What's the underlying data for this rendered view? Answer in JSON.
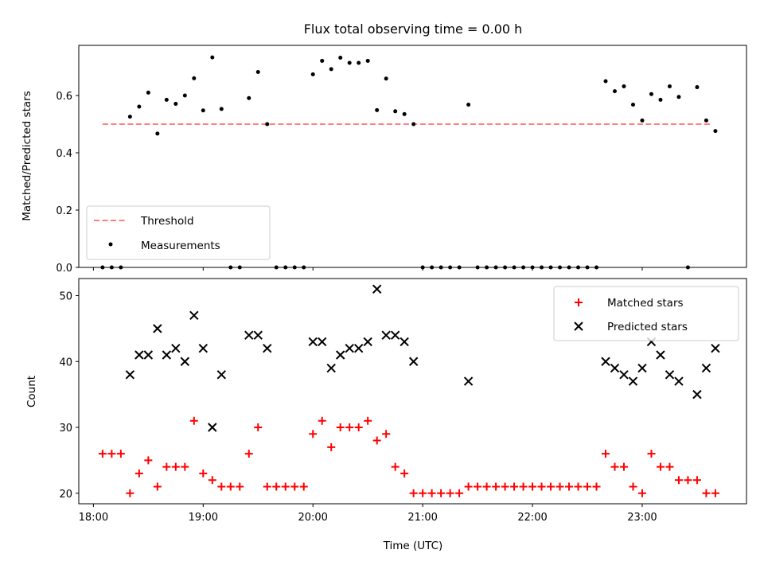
{
  "chart_data": [
    {
      "type": "scatter",
      "title": "Flux total observing time = 0.00 h",
      "xlabel": "",
      "ylabel": "Matched/Predicted stars",
      "xlim": [
        "17:52",
        "23:57"
      ],
      "ylim": [
        0,
        0.775
      ],
      "yticks": [
        0.0,
        0.2,
        0.4,
        0.6
      ],
      "ytick_labels": [
        "0.0",
        "0.2",
        "0.4",
        "0.6"
      ],
      "legend_location": "lower-left",
      "threshold": {
        "name": "Threshold",
        "value": 0.5,
        "x_start": "18:05",
        "x_end": "23:38",
        "color": "#ff7f7f"
      },
      "series": [
        {
          "name": "Measurements",
          "color": "#000000",
          "points": [
            [
              "18:05",
              0
            ],
            [
              "18:10",
              0
            ],
            [
              "18:15",
              0
            ],
            [
              "18:20",
              0.526
            ],
            [
              "18:25",
              0.561
            ],
            [
              "18:30",
              0.61
            ],
            [
              "18:35",
              0.467
            ],
            [
              "18:40",
              0.585
            ],
            [
              "18:45",
              0.571
            ],
            [
              "18:50",
              0.6
            ],
            [
              "18:55",
              0.66
            ],
            [
              "19:00",
              0.548
            ],
            [
              "19:05",
              0.733
            ],
            [
              "19:10",
              0.553
            ],
            [
              "19:15",
              0
            ],
            [
              "19:20",
              0
            ],
            [
              "19:25",
              0.591
            ],
            [
              "19:30",
              0.682
            ],
            [
              "19:35",
              0.5
            ],
            [
              "19:40",
              0
            ],
            [
              "19:45",
              0
            ],
            [
              "19:50",
              0
            ],
            [
              "19:55",
              0
            ],
            [
              "20:00",
              0.674
            ],
            [
              "20:05",
              0.721
            ],
            [
              "20:10",
              0.692
            ],
            [
              "20:15",
              0.732
            ],
            [
              "20:20",
              0.714
            ],
            [
              "20:25",
              0.714
            ],
            [
              "20:30",
              0.721
            ],
            [
              "20:35",
              0.549
            ],
            [
              "20:40",
              0.659
            ],
            [
              "20:45",
              0.545
            ],
            [
              "20:50",
              0.535
            ],
            [
              "20:55",
              0.5
            ],
            [
              "21:00",
              0
            ],
            [
              "21:05",
              0
            ],
            [
              "21:10",
              0
            ],
            [
              "21:15",
              0
            ],
            [
              "21:20",
              0
            ],
            [
              "21:25",
              0.568
            ],
            [
              "21:30",
              0
            ],
            [
              "21:35",
              0
            ],
            [
              "21:40",
              0
            ],
            [
              "21:45",
              0
            ],
            [
              "21:50",
              0
            ],
            [
              "21:55",
              0
            ],
            [
              "22:00",
              0
            ],
            [
              "22:05",
              0
            ],
            [
              "22:10",
              0
            ],
            [
              "22:15",
              0
            ],
            [
              "22:20",
              0
            ],
            [
              "22:25",
              0
            ],
            [
              "22:30",
              0
            ],
            [
              "22:35",
              0
            ],
            [
              "22:40",
              0.65
            ],
            [
              "22:45",
              0.615
            ],
            [
              "22:50",
              0.632
            ],
            [
              "22:55",
              0.568
            ],
            [
              "23:00",
              0.513
            ],
            [
              "23:05",
              0.605
            ],
            [
              "23:10",
              0.585
            ],
            [
              "23:15",
              0.632
            ],
            [
              "23:20",
              0.595
            ],
            [
              "23:25",
              0
            ],
            [
              "23:30",
              0.629
            ],
            [
              "23:35",
              0.513
            ],
            [
              "23:40",
              0.476
            ]
          ]
        }
      ]
    },
    {
      "type": "scatter",
      "title": "",
      "xlabel": "Time (UTC)",
      "ylabel": "Count",
      "xlim": [
        "17:52",
        "23:57"
      ],
      "ylim": [
        18.4,
        52.6
      ],
      "xticks": [
        "18:00",
        "19:00",
        "20:00",
        "21:00",
        "22:00",
        "23:00"
      ],
      "yticks": [
        20,
        30,
        40,
        50
      ],
      "ytick_labels": [
        "20",
        "30",
        "40",
        "50"
      ],
      "legend_location": "upper-right",
      "series": [
        {
          "name": "Matched stars",
          "color": "#ff0000",
          "marker": "+",
          "points": [
            [
              "18:05",
              26
            ],
            [
              "18:10",
              26
            ],
            [
              "18:15",
              26
            ],
            [
              "18:20",
              20
            ],
            [
              "18:25",
              23
            ],
            [
              "18:30",
              25
            ],
            [
              "18:35",
              21
            ],
            [
              "18:40",
              24
            ],
            [
              "18:45",
              24
            ],
            [
              "18:50",
              24
            ],
            [
              "18:55",
              31
            ],
            [
              "19:00",
              23
            ],
            [
              "19:05",
              22
            ],
            [
              "19:10",
              21
            ],
            [
              "19:15",
              21
            ],
            [
              "19:20",
              21
            ],
            [
              "19:25",
              26
            ],
            [
              "19:30",
              30
            ],
            [
              "19:35",
              21
            ],
            [
              "19:40",
              21
            ],
            [
              "19:45",
              21
            ],
            [
              "19:50",
              21
            ],
            [
              "19:55",
              21
            ],
            [
              "20:00",
              29
            ],
            [
              "20:05",
              31
            ],
            [
              "20:10",
              27
            ],
            [
              "20:15",
              30
            ],
            [
              "20:20",
              30
            ],
            [
              "20:25",
              30
            ],
            [
              "20:30",
              31
            ],
            [
              "20:35",
              28
            ],
            [
              "20:40",
              29
            ],
            [
              "20:45",
              24
            ],
            [
              "20:50",
              23
            ],
            [
              "20:55",
              20
            ],
            [
              "21:00",
              20
            ],
            [
              "21:05",
              20
            ],
            [
              "21:10",
              20
            ],
            [
              "21:15",
              20
            ],
            [
              "21:20",
              20
            ],
            [
              "21:25",
              21
            ],
            [
              "21:30",
              21
            ],
            [
              "21:35",
              21
            ],
            [
              "21:40",
              21
            ],
            [
              "21:45",
              21
            ],
            [
              "21:50",
              21
            ],
            [
              "21:55",
              21
            ],
            [
              "22:00",
              21
            ],
            [
              "22:05",
              21
            ],
            [
              "22:10",
              21
            ],
            [
              "22:15",
              21
            ],
            [
              "22:20",
              21
            ],
            [
              "22:25",
              21
            ],
            [
              "22:30",
              21
            ],
            [
              "22:35",
              21
            ],
            [
              "22:40",
              26
            ],
            [
              "22:45",
              24
            ],
            [
              "22:50",
              24
            ],
            [
              "22:55",
              21
            ],
            [
              "23:00",
              20
            ],
            [
              "23:05",
              26
            ],
            [
              "23:10",
              24
            ],
            [
              "23:15",
              24
            ],
            [
              "23:20",
              22
            ],
            [
              "23:25",
              22
            ],
            [
              "23:30",
              22
            ],
            [
              "23:35",
              20
            ],
            [
              "23:40",
              20
            ]
          ]
        },
        {
          "name": "Predicted stars",
          "color": "#000000",
          "marker": "x",
          "points": [
            [
              "18:20",
              38
            ],
            [
              "18:25",
              41
            ],
            [
              "18:30",
              41
            ],
            [
              "18:35",
              45
            ],
            [
              "18:40",
              41
            ],
            [
              "18:45",
              42
            ],
            [
              "18:50",
              40
            ],
            [
              "18:55",
              47
            ],
            [
              "19:00",
              42
            ],
            [
              "19:05",
              30
            ],
            [
              "19:10",
              38
            ],
            [
              "19:25",
              44
            ],
            [
              "19:30",
              44
            ],
            [
              "19:35",
              42
            ],
            [
              "20:00",
              43
            ],
            [
              "20:05",
              43
            ],
            [
              "20:10",
              39
            ],
            [
              "20:15",
              41
            ],
            [
              "20:20",
              42
            ],
            [
              "20:25",
              42
            ],
            [
              "20:30",
              43
            ],
            [
              "20:35",
              51
            ],
            [
              "20:40",
              44
            ],
            [
              "20:45",
              44
            ],
            [
              "20:50",
              43
            ],
            [
              "20:55",
              40
            ],
            [
              "21:25",
              37
            ],
            [
              "22:40",
              40
            ],
            [
              "22:45",
              39
            ],
            [
              "22:50",
              38
            ],
            [
              "22:55",
              37
            ],
            [
              "23:00",
              39
            ],
            [
              "23:05",
              43
            ],
            [
              "23:10",
              41
            ],
            [
              "23:15",
              38
            ],
            [
              "23:20",
              37
            ],
            [
              "23:30",
              35
            ],
            [
              "23:35",
              39
            ],
            [
              "23:40",
              42
            ]
          ]
        }
      ]
    }
  ]
}
